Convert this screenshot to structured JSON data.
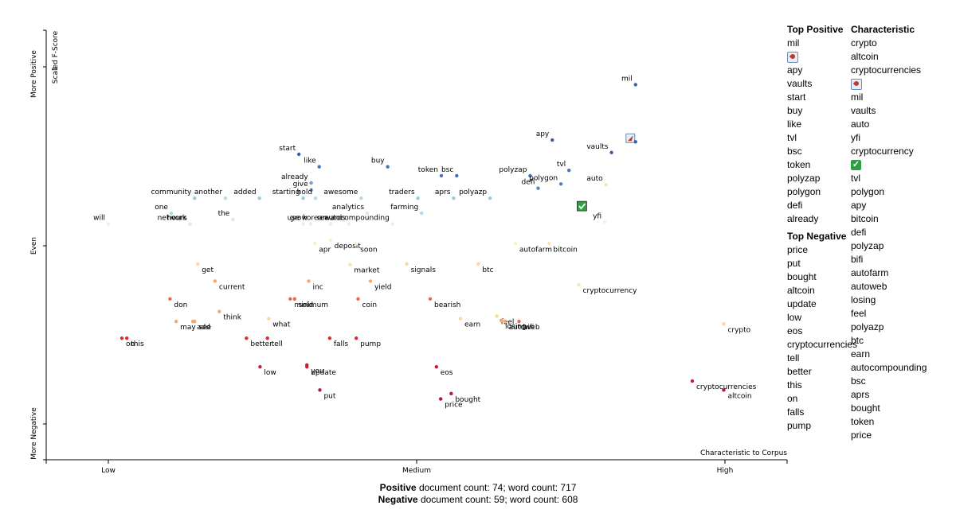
{
  "chart_data": {
    "type": "scatter",
    "title": "",
    "ylabel": "Scaled F-Score",
    "xlabel": "Characteristic to Corpus",
    "x_ticks": [
      "Low",
      "Medium",
      "High"
    ],
    "y_categories": [
      "More Positive",
      "Even",
      "More Negative"
    ],
    "y_tick_value": "1",
    "xlim": [
      0,
      1
    ],
    "ylim": [
      0,
      1
    ],
    "points": [
      {
        "term": "mil",
        "x": 0.855,
        "y": 0.95,
        "color": "#3a5ea8"
      },
      {
        "term": "🚀",
        "x": 0.855,
        "y": 0.79,
        "color": "#3a5ea8"
      },
      {
        "term": "apy",
        "x": 0.72,
        "y": 0.795,
        "color": "#3a5ea8"
      },
      {
        "term": "vaults",
        "x": 0.816,
        "y": 0.76,
        "color": "#3a5ea8"
      },
      {
        "term": "start",
        "x": 0.309,
        "y": 0.755,
        "color": "#3a5ea8"
      },
      {
        "term": "like",
        "x": 0.342,
        "y": 0.72,
        "color": "#4a72b8"
      },
      {
        "term": "buy",
        "x": 0.453,
        "y": 0.72,
        "color": "#4a72b8"
      },
      {
        "term": "tvl",
        "x": 0.747,
        "y": 0.71,
        "color": "#4a72b8"
      },
      {
        "term": "token",
        "x": 0.54,
        "y": 0.695,
        "color": "#4a72b8"
      },
      {
        "term": "bsc",
        "x": 0.565,
        "y": 0.695,
        "color": "#4a72b8"
      },
      {
        "term": "polyzap",
        "x": 0.684,
        "y": 0.695,
        "color": "#4a72b8"
      },
      {
        "term": "already",
        "x": 0.329,
        "y": 0.675,
        "color": "#6fa0cc"
      },
      {
        "term": "polygon",
        "x": 0.734,
        "y": 0.672,
        "color": "#5685bd"
      },
      {
        "term": "defi",
        "x": 0.697,
        "y": 0.66,
        "color": "#5685bd"
      },
      {
        "term": "give",
        "x": 0.329,
        "y": 0.655,
        "color": "#6fa0cc"
      },
      {
        "term": "auto",
        "x": 0.807,
        "y": 0.67,
        "color": "#f5e6a8"
      },
      {
        "term": "community",
        "x": 0.14,
        "y": 0.632,
        "color": "#9cc8e0"
      },
      {
        "term": "added",
        "x": 0.245,
        "y": 0.632,
        "color": "#9cc8e0"
      },
      {
        "term": "starting",
        "x": 0.316,
        "y": 0.632,
        "color": "#9cc8e0"
      },
      {
        "term": "traders",
        "x": 0.502,
        "y": 0.632,
        "color": "#9cc8e0"
      },
      {
        "term": "aprs",
        "x": 0.56,
        "y": 0.632,
        "color": "#9cc8e0"
      },
      {
        "term": "polyazp",
        "x": 0.619,
        "y": 0.632,
        "color": "#9cc8e0"
      },
      {
        "term": "another",
        "x": 0.19,
        "y": 0.632,
        "color": "#b6d8ea"
      },
      {
        "term": "awesome",
        "x": 0.41,
        "y": 0.632,
        "color": "#b6d8ea"
      },
      {
        "term": "hold",
        "x": 0.336,
        "y": 0.632,
        "color": "#b6d8ea"
      },
      {
        "term": "✅",
        "x": 0.768,
        "y": 0.61,
        "color": "#9cc8e0"
      },
      {
        "term": "one",
        "x": 0.102,
        "y": 0.59,
        "color": "#b6d8ea"
      },
      {
        "term": "farming",
        "x": 0.508,
        "y": 0.59,
        "color": "#b6d8ea"
      },
      {
        "term": "analytics",
        "x": 0.42,
        "y": 0.59,
        "color": "#d6eaf2"
      },
      {
        "term": "will",
        "x": 0.0,
        "y": 0.56,
        "color": "#e6eef3"
      },
      {
        "term": "the",
        "x": 0.202,
        "y": 0.572,
        "color": "#d6eaf2"
      },
      {
        "term": "grow",
        "x": 0.328,
        "y": 0.56,
        "color": "#e6eef3"
      },
      {
        "term": "network",
        "x": 0.132,
        "y": 0.56,
        "color": "#e6eef3"
      },
      {
        "term": "hours",
        "x": 0.133,
        "y": 0.56,
        "color": "#f5e6c8"
      },
      {
        "term": "use",
        "x": 0.316,
        "y": 0.56,
        "color": "#e6eef3"
      },
      {
        "term": "korean",
        "x": 0.36,
        "y": 0.56,
        "color": "#e6eef3"
      },
      {
        "term": "rewards",
        "x": 0.39,
        "y": 0.56,
        "color": "#e6eef3"
      },
      {
        "term": "autocompounding",
        "x": 0.461,
        "y": 0.56,
        "color": "#e6eef3"
      },
      {
        "term": "yfi",
        "x": 0.805,
        "y": 0.565,
        "color": "#f0f4d8"
      },
      {
        "term": "deposit",
        "x": 0.36,
        "y": 0.515,
        "color": "#f8efc8"
      },
      {
        "term": "autofarm",
        "x": 0.66,
        "y": 0.505,
        "color": "#f8efc8"
      },
      {
        "term": "apr",
        "x": 0.335,
        "y": 0.505,
        "color": "#f8efc8"
      },
      {
        "term": "soon",
        "x": 0.402,
        "y": 0.505,
        "color": "#f8efc8"
      },
      {
        "term": "bitcoin",
        "x": 0.715,
        "y": 0.505,
        "color": "#f8e4b0"
      },
      {
        "term": "get",
        "x": 0.145,
        "y": 0.448,
        "color": "#f8d7a0"
      },
      {
        "term": "market",
        "x": 0.392,
        "y": 0.446,
        "color": "#f8e4b0"
      },
      {
        "term": "signals",
        "x": 0.484,
        "y": 0.448,
        "color": "#f8d7a0"
      },
      {
        "term": "btc",
        "x": 0.6,
        "y": 0.448,
        "color": "#f8d7a0"
      },
      {
        "term": "current",
        "x": 0.173,
        "y": 0.4,
        "color": "#f4a870"
      },
      {
        "term": "inc",
        "x": 0.325,
        "y": 0.4,
        "color": "#f4a870"
      },
      {
        "term": "yield",
        "x": 0.425,
        "y": 0.4,
        "color": "#f4a870"
      },
      {
        "term": "cryptocurrency",
        "x": 0.763,
        "y": 0.39,
        "color": "#f8e4b0"
      },
      {
        "term": "don",
        "x": 0.1,
        "y": 0.35,
        "color": "#ea6a48"
      },
      {
        "term": "minimum",
        "x": 0.295,
        "y": 0.35,
        "color": "#ea6a48"
      },
      {
        "term": "sold",
        "x": 0.302,
        "y": 0.35,
        "color": "#ea6a48"
      },
      {
        "term": "coin",
        "x": 0.405,
        "y": 0.35,
        "color": "#ea6a48"
      },
      {
        "term": "bearish",
        "x": 0.522,
        "y": 0.35,
        "color": "#ea6a48"
      },
      {
        "term": "think",
        "x": 0.18,
        "y": 0.315,
        "color": "#f4a870"
      },
      {
        "term": "may",
        "x": 0.11,
        "y": 0.287,
        "color": "#f4a870"
      },
      {
        "term": "add",
        "x": 0.137,
        "y": 0.287,
        "color": "#f4a870"
      },
      {
        "term": "what",
        "x": 0.26,
        "y": 0.295,
        "color": "#f8d7a0"
      },
      {
        "term": "see",
        "x": 0.14,
        "y": 0.287,
        "color": "#f4a870"
      },
      {
        "term": "feel",
        "x": 0.63,
        "y": 0.302,
        "color": "#f8d7a0"
      },
      {
        "term": "losing",
        "x": 0.637,
        "y": 0.29,
        "color": "#f4a870"
      },
      {
        "term": "earn",
        "x": 0.571,
        "y": 0.295,
        "color": "#f8d7a0"
      },
      {
        "term": "bifi",
        "x": 0.666,
        "y": 0.287,
        "color": "#ea6a48"
      },
      {
        "term": "autoweb",
        "x": 0.643,
        "y": 0.287,
        "color": "#f4a870"
      },
      {
        "term": "crypto",
        "x": 0.998,
        "y": 0.28,
        "color": "#f8d7a0"
      },
      {
        "term": "on",
        "x": 0.022,
        "y": 0.24,
        "color": "#d7302c"
      },
      {
        "term": "this",
        "x": 0.03,
        "y": 0.24,
        "color": "#d7302c"
      },
      {
        "term": "better",
        "x": 0.224,
        "y": 0.24,
        "color": "#d7302c"
      },
      {
        "term": "tell",
        "x": 0.258,
        "y": 0.24,
        "color": "#d7302c"
      },
      {
        "term": "falls",
        "x": 0.359,
        "y": 0.24,
        "color": "#d7302c"
      },
      {
        "term": "pump",
        "x": 0.402,
        "y": 0.24,
        "color": "#d7302c"
      },
      {
        "term": "you",
        "x": 0.322,
        "y": 0.165,
        "color": "#c81e3a"
      },
      {
        "term": "low",
        "x": 0.246,
        "y": 0.16,
        "color": "#c81e3a"
      },
      {
        "term": "update",
        "x": 0.322,
        "y": 0.16,
        "color": "#c81e3a"
      },
      {
        "term": "eos",
        "x": 0.532,
        "y": 0.16,
        "color": "#c81e3a"
      },
      {
        "term": "cryptocurrencies",
        "x": 0.947,
        "y": 0.12,
        "color": "#c81e3a"
      },
      {
        "term": "put",
        "x": 0.343,
        "y": 0.095,
        "color": "#b01838"
      },
      {
        "term": "bought",
        "x": 0.556,
        "y": 0.085,
        "color": "#b01838"
      },
      {
        "term": "altcoin",
        "x": 0.998,
        "y": 0.095,
        "color": "#b01838"
      },
      {
        "term": "price",
        "x": 0.539,
        "y": 0.07,
        "color": "#b01838"
      }
    ]
  },
  "side_panel": {
    "top_positive_title": "Top Positive",
    "top_positive": [
      "mil",
      "🚀",
      "apy",
      "vaults",
      "start",
      "buy",
      "like",
      "tvl",
      "bsc",
      "token",
      "polyzap",
      "polygon",
      "defi",
      "already"
    ],
    "top_negative_title": "Top Negative",
    "top_negative": [
      "price",
      "put",
      "bought",
      "altcoin",
      "update",
      "low",
      "eos",
      "cryptocurrencies",
      "tell",
      "better",
      "this",
      "on",
      "falls",
      "pump"
    ],
    "characteristic_title": "Characteristic",
    "characteristic": [
      "crypto",
      "altcoin",
      "cryptocurrencies",
      "🚀",
      "mil",
      "vaults",
      "auto",
      "yfi",
      "cryptocurrency",
      "✅",
      "tvl",
      "polygon",
      "apy",
      "bitcoin",
      "defi",
      "polyzap",
      "bifi",
      "autofarm",
      "autoweb",
      "losing",
      "feel",
      "polyazp",
      "btc",
      "earn",
      "autocompounding",
      "bsc",
      "aprs",
      "bought",
      "token",
      "price"
    ]
  },
  "footer": {
    "positive_label": "Positive",
    "positive_text": "document count: 74; word count: 717",
    "negative_label": "Negative",
    "negative_text": "document count: 59; word count: 608"
  }
}
